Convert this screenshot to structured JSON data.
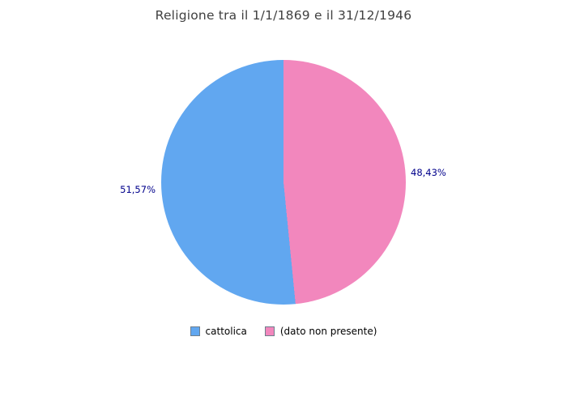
{
  "chart_data": {
    "type": "pie",
    "title": "Religione tra il 1/1/1869 e il 31/12/1946",
    "legend_position": "bottom",
    "start_angle": "top",
    "direction": "pink slice clockwise from 12 o'clock (right half), blue slice on left half",
    "categories": [
      "cattolica",
      "(dato non presente)"
    ],
    "values": [
      51.57,
      48.43
    ],
    "slices": [
      {
        "label": "cattolica",
        "value": 51.57,
        "display": "51,57%",
        "color": "#61A7F0",
        "side": "left"
      },
      {
        "label": "(dato non presente)",
        "value": 48.43,
        "display": "48,43%",
        "color": "#F287BD",
        "side": "right"
      }
    ]
  },
  "colors": {
    "title_text": "#404040",
    "percent_label_text": "#00008B",
    "legend_text": "#000000",
    "legend_swatch_border": "#6e7f8d",
    "background": "#ffffff"
  }
}
